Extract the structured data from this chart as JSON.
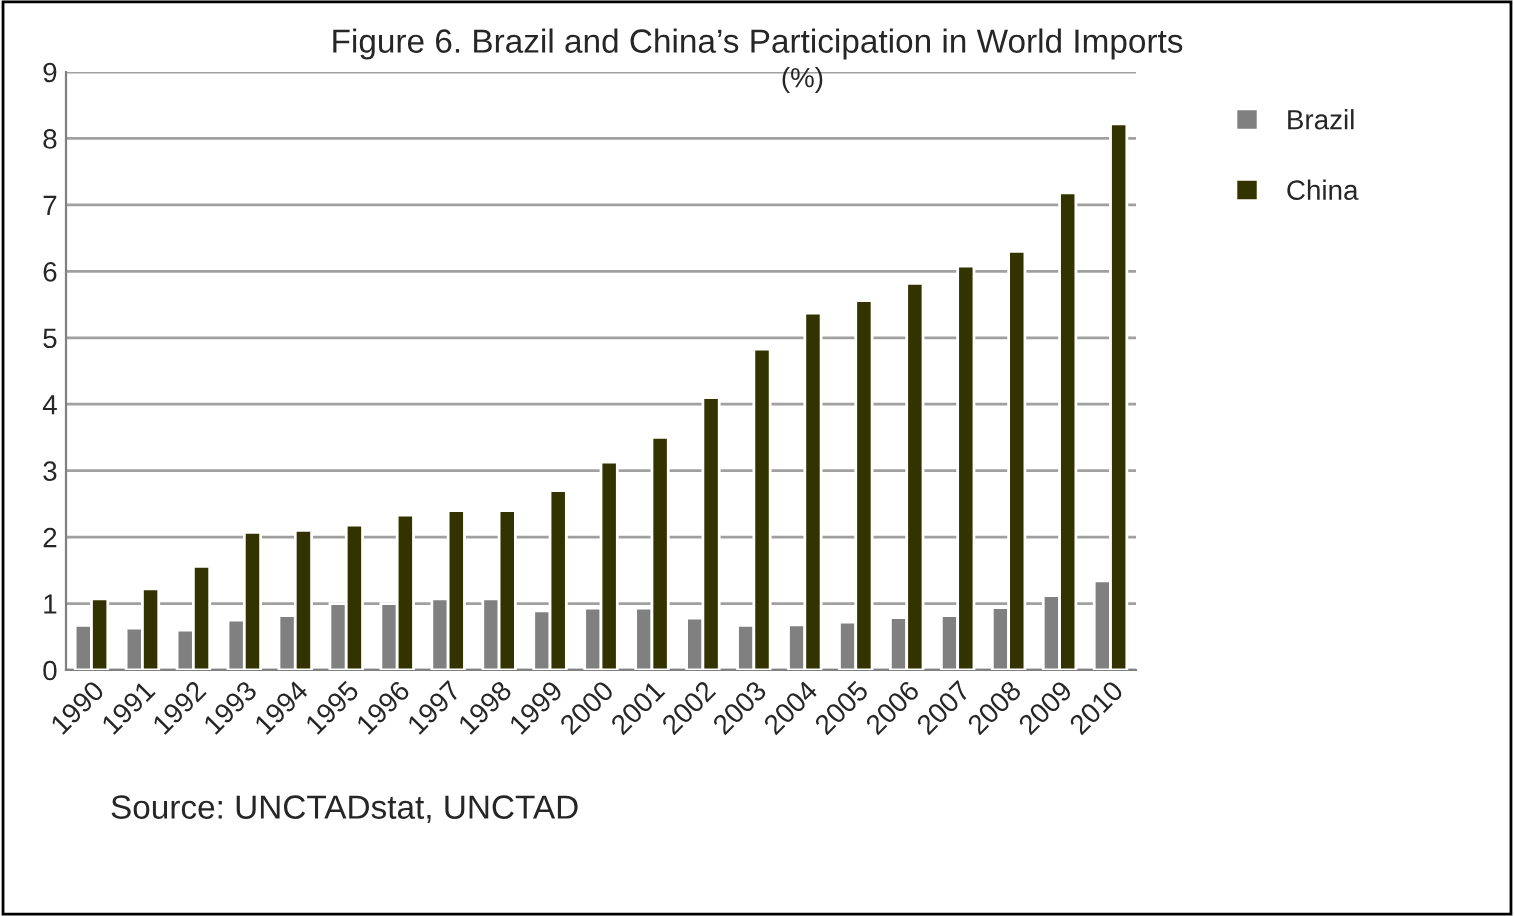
{
  "chart_data": {
    "type": "bar",
    "title": "Figure 6. Brazil and China’s Participation in World Imports",
    "subtitle": "(%)",
    "categories": [
      "1990",
      "1991",
      "1992",
      "1993",
      "1994",
      "1995",
      "1996",
      "1997",
      "1998",
      "1999",
      "2000",
      "2001",
      "2002",
      "2003",
      "2004",
      "2005",
      "2006",
      "2007",
      "2008",
      "2009",
      "2010"
    ],
    "series": [
      {
        "name": "Brazil",
        "color": "#808080",
        "values": [
          0.67,
          0.63,
          0.6,
          0.75,
          0.82,
          1.0,
          1.0,
          1.07,
          1.07,
          0.89,
          0.93,
          0.93,
          0.78,
          0.67,
          0.68,
          0.72,
          0.79,
          0.82,
          0.94,
          1.12,
          1.34
        ]
      },
      {
        "name": "China",
        "color": "#333300",
        "values": [
          1.07,
          1.22,
          1.56,
          2.07,
          2.1,
          2.18,
          2.33,
          2.4,
          2.4,
          2.7,
          3.13,
          3.5,
          4.1,
          4.83,
          5.37,
          5.56,
          5.82,
          6.08,
          6.3,
          7.18,
          8.22
        ]
      }
    ],
    "ylim": [
      0,
      9
    ],
    "yticks": [
      0,
      1,
      2,
      3,
      4,
      5,
      6,
      7,
      8,
      9
    ],
    "grid": "y",
    "legend": "right",
    "annotations": [
      "Source: UNCTADstat, UNCTAD"
    ]
  }
}
